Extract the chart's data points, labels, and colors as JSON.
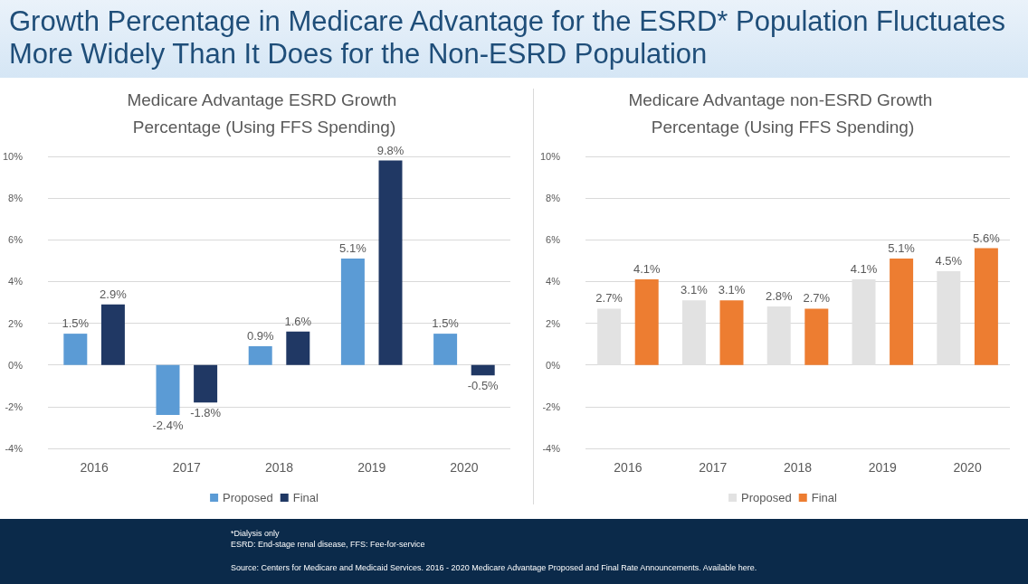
{
  "chart_data": [
    {
      "type": "bar",
      "title": "Growth Percentage in Medicare Advantage for the ESRD* Population Fluctuates More Widely Than It Does for the Non-ESRD Population",
      "subtitle": "Medicare Advantage ESRD Growth Percentage (Using FFS Spending)",
      "categories": [
        "2016",
        "2017",
        "2018",
        "2019",
        "2020"
      ],
      "series": [
        {
          "name": "Proposed",
          "color": "#5b9bd5",
          "values": [
            1.5,
            -2.4,
            0.9,
            5.1,
            1.5
          ],
          "value_labels": [
            "1.5%",
            "-2.4%",
            "0.9%",
            "5.1%",
            "1.5%"
          ]
        },
        {
          "name": "Final",
          "color": "#203864",
          "values": [
            2.9,
            -1.8,
            1.6,
            9.8,
            -0.5
          ],
          "value_labels": [
            "2.9%",
            "-1.8%",
            "1.6%",
            "9.8%",
            "-0.5%"
          ]
        }
      ],
      "ylim": [
        -4,
        10
      ],
      "yticks": [
        {
          "value": -4,
          "label": "-4%"
        },
        {
          "value": -2,
          "label": "-2%"
        },
        {
          "value": 0,
          "label": "0%"
        },
        {
          "value": 2,
          "label": "2%"
        },
        {
          "value": 4,
          "label": "4%"
        },
        {
          "value": 6,
          "label": "6%"
        },
        {
          "value": 8,
          "label": "8%"
        },
        {
          "value": 10,
          "label": "10%"
        }
      ],
      "grid": "y",
      "legend": "bottom",
      "annotations": [
        "*Dialysis only",
        "ESRD: End-stage renal disease, FFS: Fee-for-service",
        "Source: Centers for Medicare and Medicaid Services. 2016 - 2020 Medicare Advantage Proposed and Final Rate Announcements. Available here."
      ]
    },
    {
      "type": "bar",
      "subtitle": "Medicare Advantage non-ESRD Growth Percentage (Using FFS Spending)",
      "categories": [
        "2016",
        "2017",
        "2018",
        "2019",
        "2020"
      ],
      "series": [
        {
          "name": "Proposed",
          "color": "#e2e2e2",
          "values": [
            2.7,
            3.1,
            2.8,
            4.1,
            4.5
          ],
          "value_labels": [
            "2.7%",
            "3.1%",
            "2.8%",
            "4.1%",
            "4.5%"
          ]
        },
        {
          "name": "Final",
          "color": "#ed7d31",
          "values": [
            4.1,
            3.1,
            2.7,
            5.1,
            5.6
          ],
          "value_labels": [
            "4.1%",
            "3.1%",
            "2.7%",
            "5.1%",
            "5.6%"
          ]
        }
      ],
      "ylim": [
        -4,
        10
      ],
      "yticks": [
        {
          "value": -4,
          "label": "-4%"
        },
        {
          "value": -2,
          "label": "-2%"
        },
        {
          "value": 0,
          "label": "0%"
        },
        {
          "value": 2,
          "label": "2%"
        },
        {
          "value": 4,
          "label": "4%"
        },
        {
          "value": 6,
          "label": "6%"
        },
        {
          "value": 8,
          "label": "8%"
        },
        {
          "value": 10,
          "label": "10%"
        }
      ],
      "grid": "y",
      "legend": "bottom"
    }
  ]
}
